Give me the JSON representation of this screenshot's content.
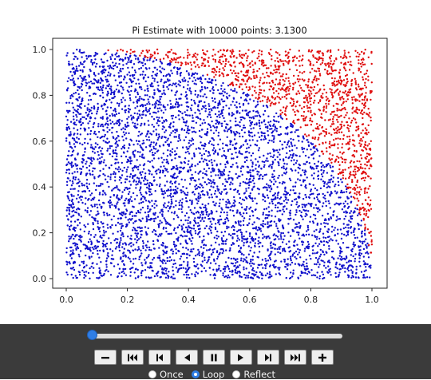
{
  "chart_data": {
    "type": "scatter",
    "title": "Pi Estimate with 10000 points: 3.1300",
    "xlim": [
      0,
      1
    ],
    "ylim": [
      0,
      1
    ],
    "xticks": [
      "0.0",
      "0.2",
      "0.4",
      "0.6",
      "0.8",
      "1.0"
    ],
    "yticks": [
      "0.0",
      "0.2",
      "0.4",
      "0.6",
      "0.8",
      "1.0"
    ],
    "grid": false,
    "total_points": 10000,
    "pi_estimate": 3.13,
    "series": [
      {
        "color": "#1010cc",
        "region": "inside unit quarter circle (x^2 + y^2 <= 1)"
      },
      {
        "color": "#e01010",
        "region": "outside unit quarter circle (x^2 + y^2 > 1)"
      }
    ]
  },
  "animation_controls": {
    "slider_value": 0,
    "buttons": [
      "−",
      "⏮",
      "|◀",
      "◀",
      "❚❚",
      "▶",
      "▶|",
      "⏭",
      "+"
    ],
    "playback_modes": [
      "Once",
      "Loop",
      "Reflect"
    ],
    "selected_mode": "Loop"
  }
}
